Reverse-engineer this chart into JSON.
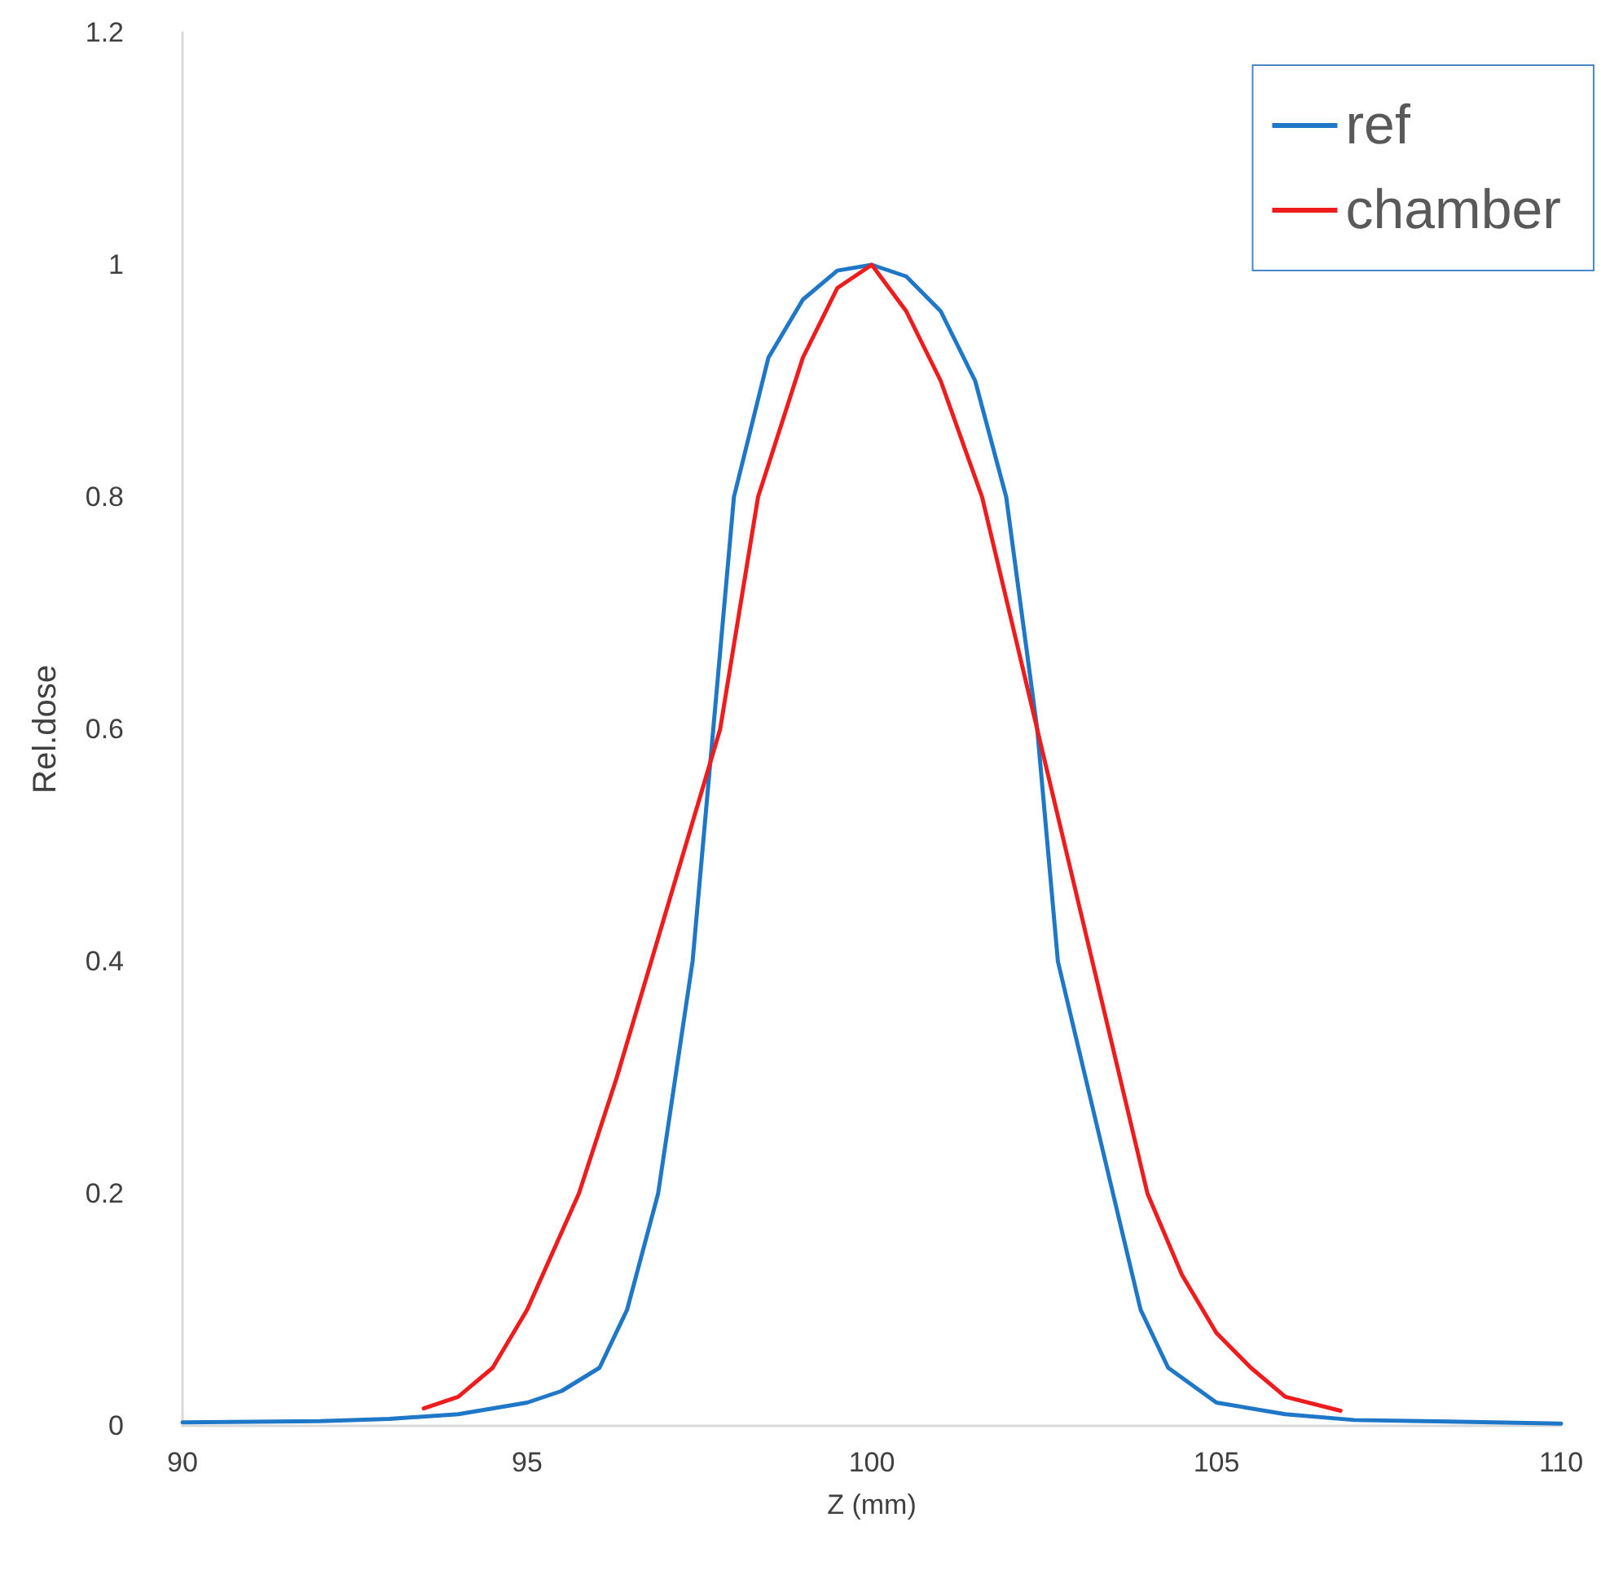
{
  "chart_data": {
    "type": "line",
    "xlabel": "Z (mm)",
    "ylabel": "Rel.dose",
    "xlim": [
      90,
      110
    ],
    "xticks": [
      90,
      95,
      100,
      105,
      110
    ],
    "ylim": [
      0,
      1.2
    ],
    "yticks": [
      0,
      0.2,
      0.4,
      0.6,
      0.8,
      1,
      1.2
    ],
    "grid": false,
    "legend": "top right",
    "marker": "none",
    "line_style": "solid",
    "series": [
      {
        "name": "ref",
        "color": "#1f77c8",
        "x": [
          90,
          92,
          93,
          94,
          95,
          95.5,
          96.05,
          96.45,
          96.9,
          97.4,
          97.7,
          98,
          98.5,
          99,
          99.5,
          100,
          100.5,
          101,
          101.5,
          101.95,
          102.4,
          102.7,
          103.1,
          103.5,
          103.9,
          104.3,
          105,
          106,
          107,
          108,
          110
        ],
        "values": [
          0.003,
          0.004,
          0.006,
          0.01,
          0.02,
          0.03,
          0.05,
          0.1,
          0.2,
          0.4,
          0.6,
          0.8,
          0.92,
          0.97,
          0.995,
          1,
          0.99,
          0.96,
          0.9,
          0.8,
          0.6,
          0.4,
          0.3,
          0.2,
          0.1,
          0.05,
          0.02,
          0.01,
          0.005,
          0.004,
          0.002
        ]
      },
      {
        "name": "chamber",
        "color": "#ee1c1c",
        "x": [
          93.5,
          94,
          94.5,
          95,
          95.75,
          96.3,
          96.8,
          97.3,
          97.8,
          98.35,
          99,
          99.5,
          100,
          100.5,
          101,
          101.6,
          102.4,
          102.8,
          103.2,
          103.6,
          104,
          104.5,
          105,
          105.5,
          106,
          106.8
        ],
        "values": [
          0.015,
          0.025,
          0.05,
          0.1,
          0.2,
          0.3,
          0.4,
          0.5,
          0.6,
          0.8,
          0.92,
          0.98,
          1,
          0.96,
          0.9,
          0.8,
          0.6,
          0.5,
          0.4,
          0.3,
          0.2,
          0.13,
          0.08,
          0.05,
          0.025,
          0.013
        ]
      }
    ]
  }
}
